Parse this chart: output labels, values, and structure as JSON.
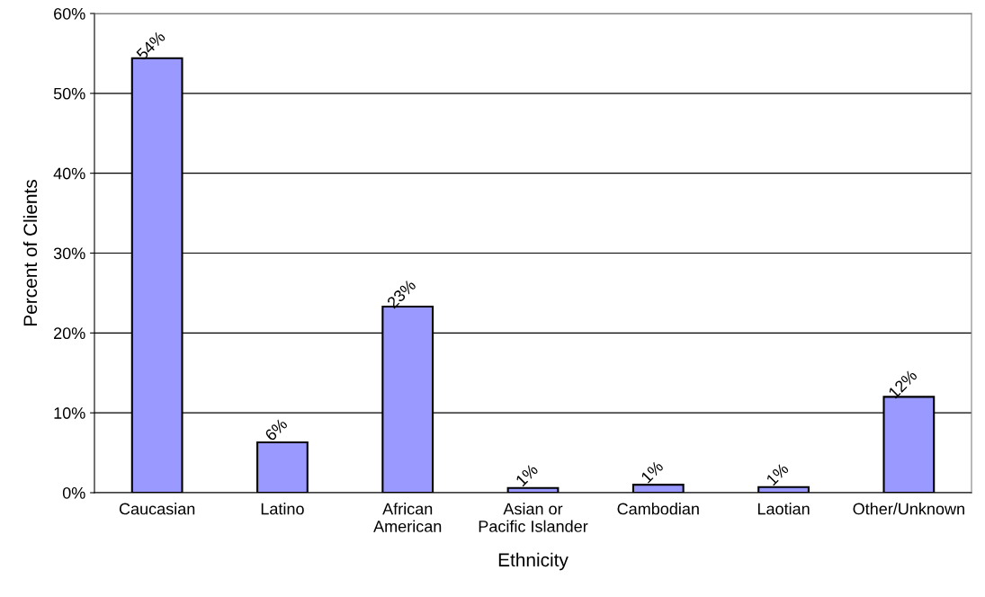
{
  "chart_data": {
    "type": "bar",
    "xlabel": "Ethnicity",
    "ylabel": "Percent of Clients",
    "categories": [
      "Caucasian",
      "Latino",
      "African\nAmerican",
      "Asian or\nPacific Islander",
      "Cambodian",
      "Laotian",
      "Other/Unknown"
    ],
    "values": [
      54.4,
      6.3,
      23.3,
      0.6,
      1.0,
      0.7,
      12.0
    ],
    "value_labels": [
      "54%",
      "6%",
      "23%",
      "1%",
      "1%",
      "1%",
      "12%"
    ],
    "color": "#9999ff",
    "ylim": [
      0,
      60
    ],
    "yticks": [
      {
        "value": 0,
        "label": "0%"
      },
      {
        "value": 10,
        "label": "10%"
      },
      {
        "value": 20,
        "label": "20%"
      },
      {
        "value": 30,
        "label": "30%"
      },
      {
        "value": 40,
        "label": "40%"
      },
      {
        "value": 50,
        "label": "50%"
      },
      {
        "value": 60,
        "label": "60%"
      }
    ],
    "grid": "y",
    "legend": false
  }
}
